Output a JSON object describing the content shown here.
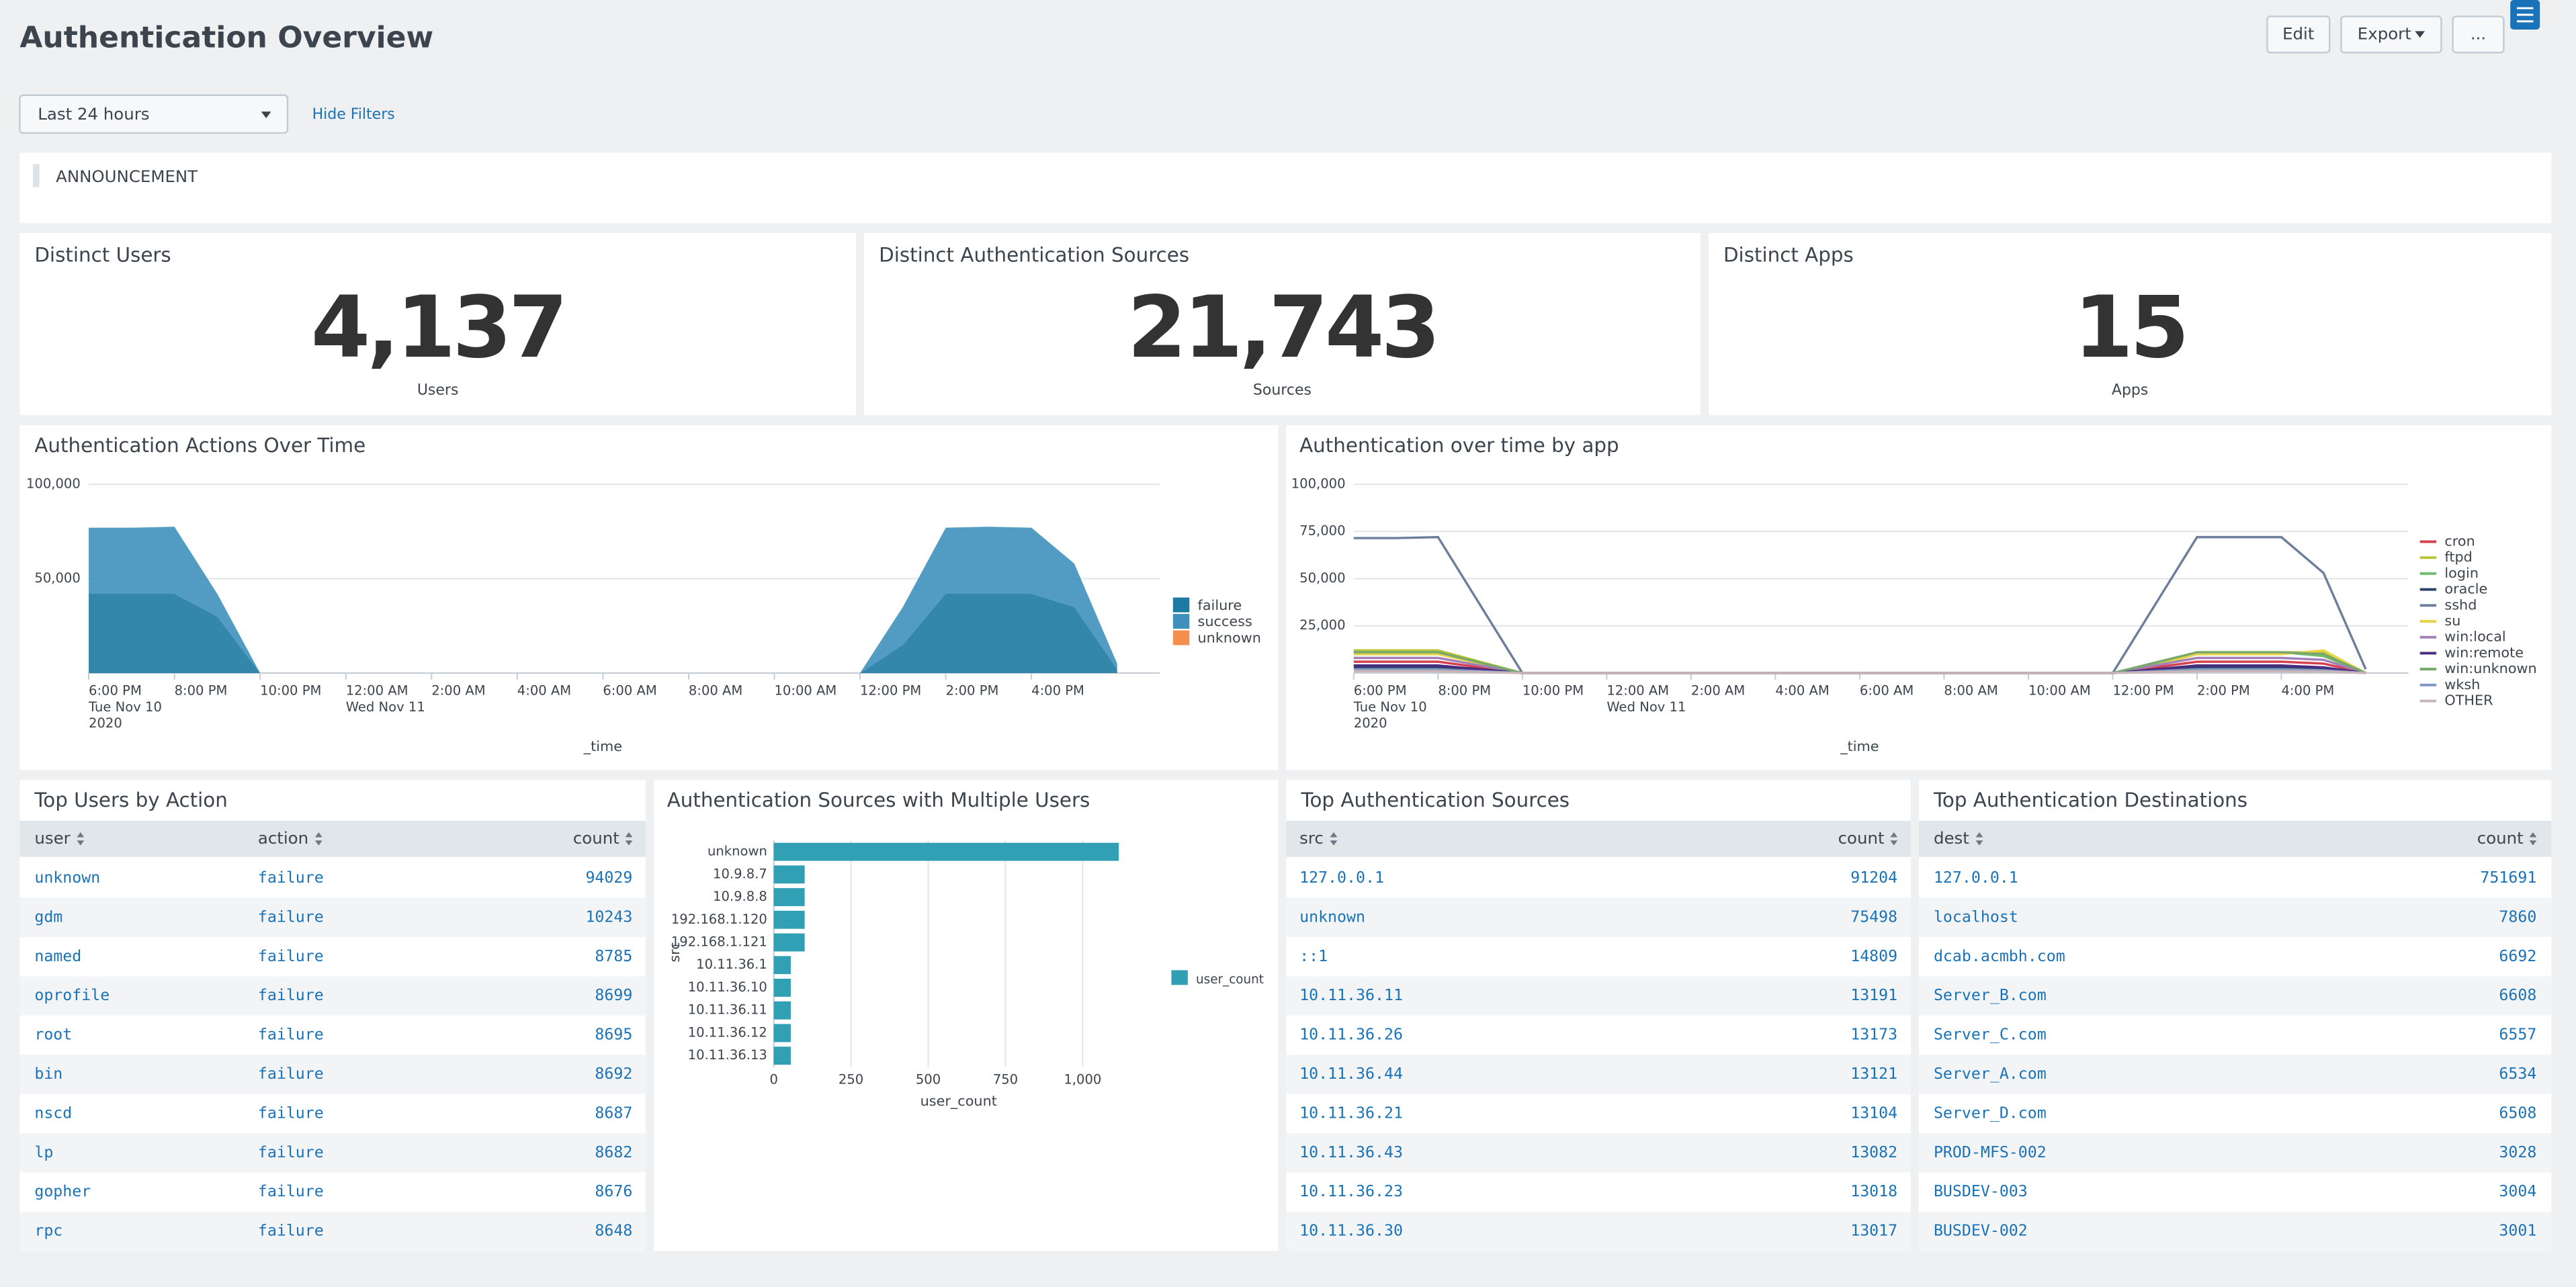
{
  "header": {
    "title": "Authentication Overview",
    "buttons": [
      "Edit",
      "Export",
      "..."
    ]
  },
  "filters": {
    "time_range": "Last 24 hours",
    "toggle": "Hide Filters"
  },
  "announcement": "ANNOUNCEMENT",
  "kpis": [
    {
      "title": "Distinct Users",
      "value": "4,137",
      "unit": "Users"
    },
    {
      "title": "Distinct Authentication Sources",
      "value": "21,743",
      "unit": "Sources"
    },
    {
      "title": "Distinct Apps",
      "value": "15",
      "unit": "Apps"
    }
  ],
  "chart_data": [
    {
      "type": "area",
      "title": "Authentication Actions Over Time",
      "x_label": "_time",
      "categories": [
        "6:00 PM",
        null,
        "8:00 PM",
        null,
        "10:00 PM",
        null,
        "12:00 AM",
        null,
        "2:00 AM",
        null,
        "4:00 AM",
        null,
        "6:00 AM",
        null,
        "8:00 AM",
        null,
        "10:00 AM",
        null,
        "12:00 PM",
        null,
        "2:00 PM",
        null,
        "4:00 PM",
        null,
        null
      ],
      "date_lines": [
        [
          "Tue Nov 10",
          "2020"
        ],
        null,
        null,
        null,
        null,
        null,
        [
          "Wed Nov 11"
        ],
        null,
        null,
        null,
        null,
        null,
        null,
        null,
        null,
        null,
        null,
        null,
        null,
        null,
        null,
        null,
        null,
        null,
        null
      ],
      "stacked": true,
      "ylim": [
        0,
        100000
      ],
      "yticks": [
        {
          "value": 50000,
          "label": "50,000"
        },
        {
          "value": 100000,
          "label": "100,000"
        }
      ],
      "grid": true,
      "series": [
        {
          "name": "failure",
          "color": "#1d7aa2",
          "values": [
            42000,
            42000,
            42000,
            30000,
            0,
            0,
            0,
            0,
            0,
            0,
            0,
            0,
            0,
            0,
            0,
            0,
            0,
            0,
            0,
            15000,
            42000,
            42000,
            42000,
            35000,
            2000
          ]
        },
        {
          "name": "success",
          "color": "#3f90bb",
          "values": [
            35000,
            35000,
            35500,
            12000,
            0,
            0,
            0,
            0,
            0,
            0,
            0,
            0,
            0,
            0,
            0,
            0,
            0,
            0,
            0,
            20000,
            35000,
            35500,
            35000,
            23000,
            3000
          ]
        },
        {
          "name": "unknown",
          "color": "#f58f4e",
          "values": [
            0,
            0,
            0,
            0,
            0,
            0,
            0,
            0,
            0,
            0,
            0,
            0,
            0,
            0,
            0,
            0,
            0,
            0,
            0,
            0,
            0,
            0,
            0,
            0,
            0
          ]
        }
      ]
    },
    {
      "type": "line",
      "title": "Authentication over time by app",
      "x_label": "_time",
      "categories": [
        "6:00 PM",
        null,
        "8:00 PM",
        null,
        "10:00 PM",
        null,
        "12:00 AM",
        null,
        "2:00 AM",
        null,
        "4:00 AM",
        null,
        "6:00 AM",
        null,
        "8:00 AM",
        null,
        "10:00 AM",
        null,
        "12:00 PM",
        null,
        "2:00 PM",
        null,
        "4:00 PM",
        null,
        null
      ],
      "date_lines": [
        [
          "Tue Nov 10",
          "2020"
        ],
        null,
        null,
        null,
        null,
        null,
        [
          "Wed Nov 11"
        ],
        null,
        null,
        null,
        null,
        null,
        null,
        null,
        null,
        null,
        null,
        null,
        null,
        null,
        null,
        null,
        null,
        null,
        null
      ],
      "ylim": [
        0,
        100000
      ],
      "yticks": [
        {
          "value": 25000,
          "label": "25,000"
        },
        {
          "value": 50000,
          "label": "50,000"
        },
        {
          "value": 75000,
          "label": "75,000"
        },
        {
          "value": 100000,
          "label": "100,000"
        }
      ],
      "grid": true,
      "series": [
        {
          "name": "cron",
          "color": "#d6404e",
          "values": [
            6000,
            6000,
            6000,
            3000,
            0,
            0,
            0,
            0,
            0,
            0,
            0,
            0,
            0,
            0,
            0,
            0,
            0,
            0,
            0,
            3000,
            6000,
            6000,
            6000,
            5000,
            0
          ]
        },
        {
          "name": "ftpd",
          "color": "#b7c438",
          "values": [
            12000,
            12000,
            12000,
            6000,
            0,
            0,
            0,
            0,
            0,
            0,
            0,
            0,
            0,
            0,
            0,
            0,
            0,
            0,
            0,
            5000,
            11000,
            11000,
            11000,
            11000,
            0
          ]
        },
        {
          "name": "login",
          "color": "#6fbf73",
          "values": [
            11000,
            11000,
            11000,
            5000,
            0,
            0,
            0,
            0,
            0,
            0,
            0,
            0,
            0,
            0,
            0,
            0,
            0,
            0,
            0,
            5000,
            11000,
            11000,
            11000,
            9000,
            0
          ]
        },
        {
          "name": "oracle",
          "color": "#2b3f6b",
          "values": [
            3000,
            3000,
            3000,
            1500,
            0,
            0,
            0,
            0,
            0,
            0,
            0,
            0,
            0,
            0,
            0,
            0,
            0,
            0,
            0,
            1500,
            3000,
            3000,
            3000,
            2500,
            0
          ]
        },
        {
          "name": "sshd",
          "color": "#6d7f9c",
          "values": [
            71500,
            71500,
            72000,
            36000,
            0,
            0,
            0,
            0,
            0,
            0,
            0,
            0,
            0,
            0,
            0,
            0,
            0,
            0,
            0,
            36000,
            72000,
            72000,
            72000,
            53000,
            2000
          ]
        },
        {
          "name": "su",
          "color": "#e9d44a",
          "values": [
            10000,
            10000,
            10000,
            5000,
            0,
            0,
            0,
            0,
            0,
            0,
            0,
            0,
            0,
            0,
            0,
            0,
            0,
            0,
            0,
            4000,
            10000,
            10000,
            10000,
            12000,
            0
          ]
        },
        {
          "name": "win:local",
          "color": "#a37fb8",
          "values": [
            8000,
            8000,
            8000,
            4000,
            0,
            0,
            0,
            0,
            0,
            0,
            0,
            0,
            0,
            0,
            0,
            0,
            0,
            0,
            0,
            4000,
            8000,
            8000,
            8000,
            7000,
            0
          ]
        },
        {
          "name": "win:remote",
          "color": "#4b2b7f",
          "values": [
            4000,
            4000,
            4000,
            2000,
            0,
            0,
            0,
            0,
            0,
            0,
            0,
            0,
            0,
            0,
            0,
            0,
            0,
            0,
            0,
            2000,
            4000,
            4000,
            4000,
            3000,
            0
          ]
        },
        {
          "name": "win:unknown",
          "color": "#78a86b",
          "values": [
            11000,
            11000,
            11000,
            5500,
            0,
            0,
            0,
            0,
            0,
            0,
            0,
            0,
            0,
            0,
            0,
            0,
            0,
            0,
            0,
            5500,
            11000,
            11000,
            11000,
            10000,
            0
          ]
        },
        {
          "name": "wksh",
          "color": "#8097c4",
          "values": [
            2000,
            2000,
            2000,
            1000,
            0,
            0,
            0,
            0,
            0,
            0,
            0,
            0,
            0,
            0,
            0,
            0,
            0,
            0,
            0,
            1000,
            2000,
            2000,
            2000,
            1500,
            0
          ]
        },
        {
          "name": "OTHER",
          "color": "#c9b5b5",
          "values": [
            1000,
            1000,
            1000,
            500,
            0,
            0,
            0,
            0,
            0,
            0,
            0,
            0,
            0,
            0,
            0,
            0,
            0,
            0,
            0,
            500,
            1000,
            1000,
            1000,
            800,
            0
          ]
        }
      ]
    },
    {
      "type": "bar",
      "orientation": "horizontal",
      "title": "Authentication Sources with Multiple Users",
      "x_label": "user_count",
      "y_label": "src",
      "categories": [
        "unknown",
        "10.9.8.7",
        "10.9.8.8",
        "192.168.1.120",
        "192.168.1.121",
        "10.11.36.1",
        "10.11.36.10",
        "10.11.36.11",
        "10.11.36.12",
        "10.11.36.13"
      ],
      "series": [
        {
          "name": "user_count",
          "color": "#31a0b4",
          "values": [
            1117,
            100,
            100,
            100,
            100,
            55,
            55,
            55,
            55,
            55
          ]
        }
      ],
      "xlim": [
        0,
        1250
      ],
      "xticks": [
        0,
        250,
        500,
        750,
        {
          "value": 1000,
          "label": "1,000"
        }
      ],
      "grid": true
    }
  ],
  "tables": [
    {
      "title": "Top Users by Action",
      "columns": [
        "user",
        "action",
        "count"
      ],
      "rows": [
        [
          "unknown",
          "failure",
          "94029"
        ],
        [
          "gdm",
          "failure",
          "10243"
        ],
        [
          "named",
          "failure",
          "8785"
        ],
        [
          "oprofile",
          "failure",
          "8699"
        ],
        [
          "root",
          "failure",
          "8695"
        ],
        [
          "bin",
          "failure",
          "8692"
        ],
        [
          "nscd",
          "failure",
          "8687"
        ],
        [
          "lp",
          "failure",
          "8682"
        ],
        [
          "gopher",
          "failure",
          "8676"
        ],
        [
          "rpc",
          "failure",
          "8648"
        ]
      ]
    },
    {
      "title": "Top Authentication Sources",
      "columns": [
        "src",
        "count"
      ],
      "rows": [
        [
          "127.0.0.1",
          "91204"
        ],
        [
          "unknown",
          "75498"
        ],
        [
          "::1",
          "14809"
        ],
        [
          "10.11.36.11",
          "13191"
        ],
        [
          "10.11.36.26",
          "13173"
        ],
        [
          "10.11.36.44",
          "13121"
        ],
        [
          "10.11.36.21",
          "13104"
        ],
        [
          "10.11.36.43",
          "13082"
        ],
        [
          "10.11.36.23",
          "13018"
        ],
        [
          "10.11.36.30",
          "13017"
        ]
      ]
    },
    {
      "title": "Top Authentication Destinations",
      "columns": [
        "dest",
        "count"
      ],
      "rows": [
        [
          "127.0.0.1",
          "751691"
        ],
        [
          "localhost",
          "7860"
        ],
        [
          "dcab.acmbh.com",
          "6692"
        ],
        [
          "Server_B.com",
          "6608"
        ],
        [
          "Server_C.com",
          "6557"
        ],
        [
          "Server_A.com",
          "6534"
        ],
        [
          "Server_D.com",
          "6508"
        ],
        [
          "PROD-MFS-002",
          "3028"
        ],
        [
          "BUSDEV-003",
          "3004"
        ],
        [
          "BUSDEV-002",
          "3001"
        ]
      ]
    }
  ]
}
